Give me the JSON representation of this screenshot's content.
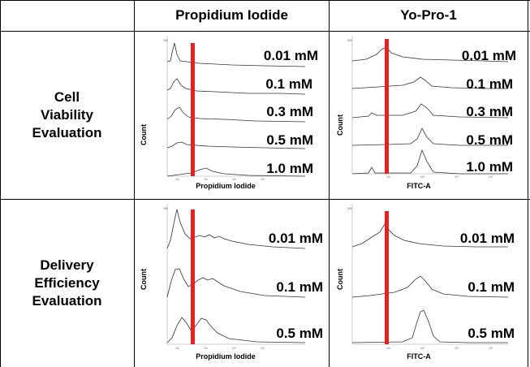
{
  "table": {
    "headers": [
      "Propidium Iodide",
      "Yo-Pro-1"
    ],
    "rows": [
      {
        "label": [
          "Cell",
          "Viability",
          "Evaluation"
        ]
      },
      {
        "label": [
          "Delivery",
          "Efficiency",
          "Evaluation"
        ]
      }
    ]
  },
  "panels": {
    "viability_pi": {
      "xlabel": "Propidium Iodide",
      "ylabel": "Count",
      "concentrations": [
        "0.01 mM",
        "0.1 mM",
        "0.3 mM",
        "0.5 mM",
        "1.0 mM"
      ]
    },
    "viability_yo": {
      "xlabel": "FITC-A",
      "ylabel": "Count",
      "concentrations": [
        "0.01 mM",
        "0.1 mM",
        "0.3 mM",
        "0.5 mM",
        "1.0 mM"
      ]
    },
    "delivery_pi": {
      "xlabel": "Propidium Iodide",
      "ylabel": "Count",
      "concentrations": [
        "0.01 mM",
        "0.1 mM",
        "0.5 mM"
      ]
    },
    "delivery_yo": {
      "xlabel": "FITC-A",
      "ylabel": "Count",
      "concentrations": [
        "0.01 mM",
        "0.1 mM",
        "0.5 mM"
      ]
    }
  },
  "colors": {
    "gate_line": "#e8201f",
    "trace": "#333333",
    "grid": "#000000"
  }
}
